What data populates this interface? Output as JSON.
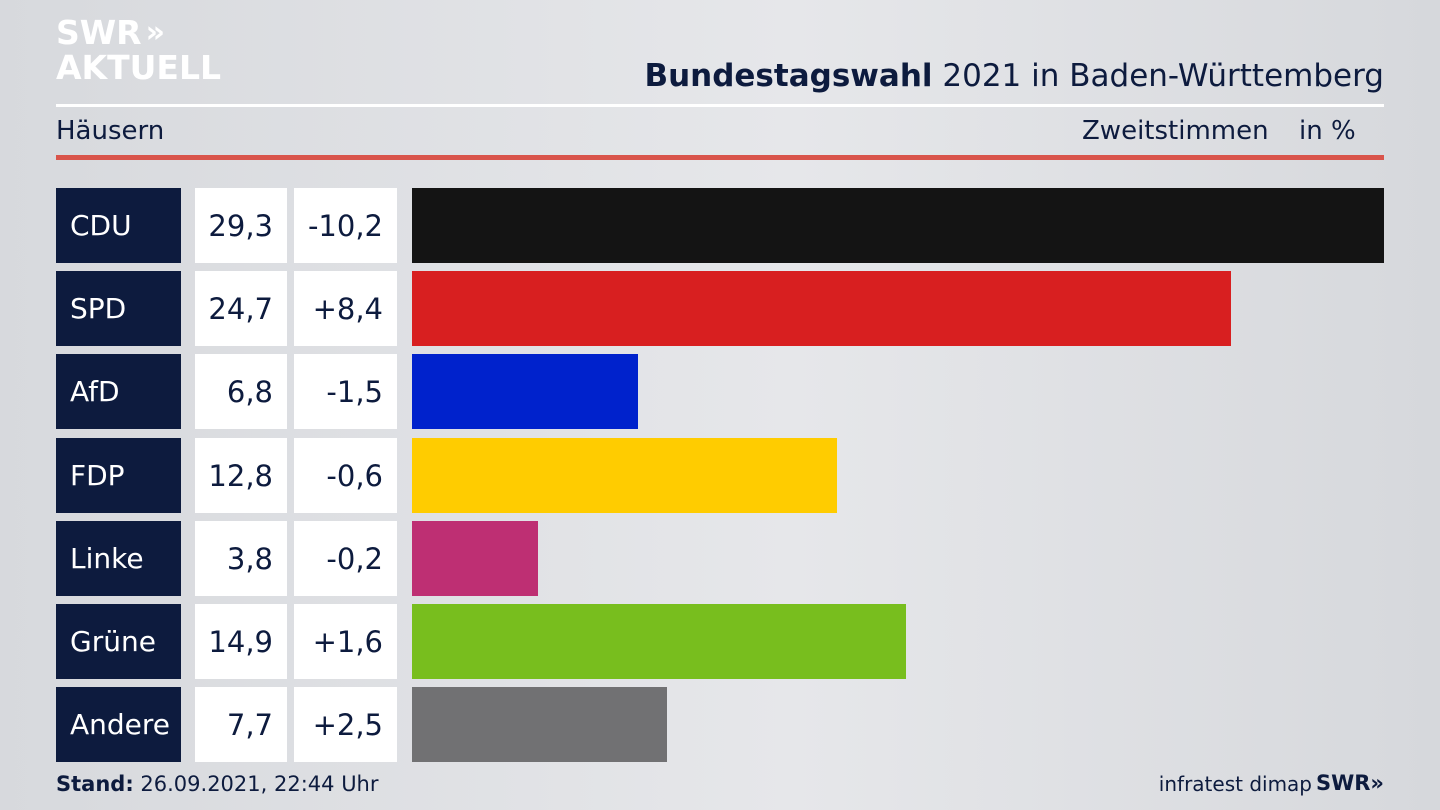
{
  "logo": {
    "line1": "SWR",
    "chevrons": "»",
    "line2": "AKTUELL"
  },
  "header": {
    "title_bold": "Bundestagswahl",
    "title_rest": "2021 in Baden-Württemberg",
    "region": "Häusern",
    "metric": "Zweitstimmen",
    "unit": "in %"
  },
  "colors": {
    "navy": "#0d1b3e",
    "accent_line": "#d9544b"
  },
  "chart_data": {
    "type": "bar",
    "categories": [
      "CDU",
      "SPD",
      "AfD",
      "FDP",
      "Linke",
      "Grüne",
      "Andere"
    ],
    "values": [
      29.3,
      24.7,
      6.8,
      12.8,
      3.8,
      14.9,
      7.7
    ],
    "value_labels": [
      "29,3",
      "24,7",
      "6,8",
      "12,8",
      "3,8",
      "14,9",
      "7,7"
    ],
    "change_labels": [
      "-10,2",
      "+8,4",
      "-1,5",
      "-0,6",
      "-0,2",
      "+1,6",
      "+2,5"
    ],
    "colors": [
      "#141414",
      "#d81f20",
      "#0022cc",
      "#ffcc00",
      "#be2f73",
      "#78be1e",
      "#717173"
    ],
    "orientation": "horizontal",
    "xlim": [
      0,
      29.3
    ]
  },
  "footer": {
    "stand_label": "Stand:",
    "stand_value": "26.09.2021, 22:44 Uhr",
    "source": "infratest dimap",
    "brand": "SWR»"
  }
}
